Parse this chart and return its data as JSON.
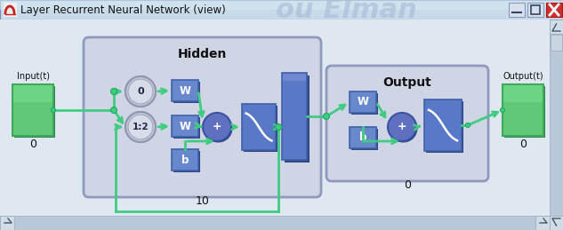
{
  "title": "Layer Recurrent Neural Network (view)",
  "input_label": "Input(t)",
  "output_label": "Output(t)",
  "hidden_label": "Hidden",
  "output_section_label": "Output",
  "zero_label": "0",
  "ten_label": "10",
  "delay_0_label": "0",
  "delay_12_label": "1:2",
  "W_label": "W",
  "b_label": "b",
  "plus_label": "+",
  "watermark_text": "ou Elman",
  "titlebar_bg": "#c8daea",
  "content_bg": "#dde8f0",
  "hidden_box_bg": "#d0d5e5",
  "hidden_box_edge": "#9099bb",
  "output_box_bg": "#d0d5e5",
  "output_box_edge": "#9099bb",
  "green_fill": "#60c878",
  "green_edge": "#40a858",
  "blue_fill": "#6888cc",
  "blue_edge": "#4060a8",
  "blue_dark_fill": "#4a68b8",
  "gray_circle_outer": "#b8c0d0",
  "gray_circle_inner": "#d8dce8",
  "sum_fill": "#6070c0",
  "sum_edge": "#3850a0",
  "arrow_color": "#40cc80",
  "dot_fill": "#40cc80",
  "dot_edge": "#20aa60",
  "scrollbar_bg": "#b8c8d8",
  "scrollbar_btn": "#d0dce8",
  "win_btn_min": "#d8e0ec",
  "win_btn_max": "#d8e0ec",
  "win_btn_close": "#cc3030",
  "watermark_color": "#a8bcd8",
  "title_text_color": "#333333",
  "matlab_icon_red": "#cc2020",
  "matlab_icon_fill": "#e8e8e8"
}
